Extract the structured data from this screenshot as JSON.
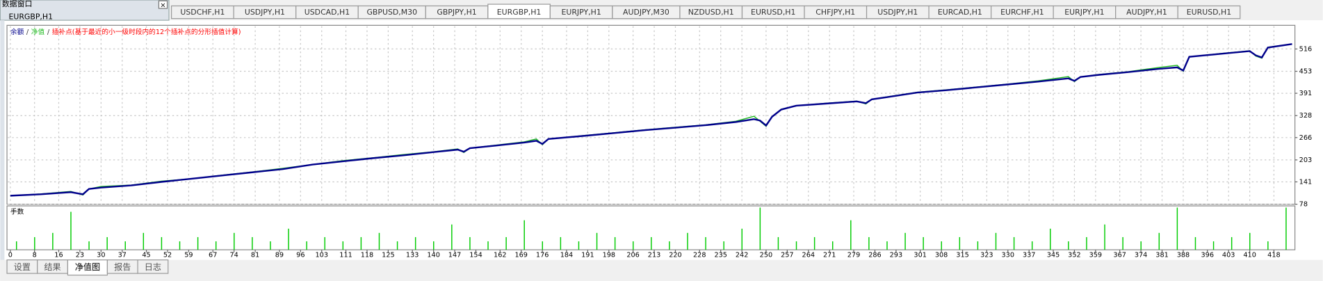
{
  "data_window": {
    "title": "数据窗口",
    "symbol": "EURGBP,H1"
  },
  "chart_tabs": {
    "items": [
      "USDCHF,H1",
      "USDJPY,H1",
      "USDCAD,H1",
      "GBPUSD,M30",
      "GBPJPY,H1",
      "EURGBP,H1",
      "EURJPY,H1",
      "AUDJPY,M30",
      "NZDUSD,H1",
      "EURUSD,H1",
      "CHFJPY,H1",
      "USDJPY,H1",
      "EURCAD,H1",
      "EURCHF,H1",
      "EURJPY,H1",
      "AUDJPY,H1",
      "EURUSD,H1"
    ],
    "active": 5
  },
  "bottom_tabs": {
    "items": [
      "设置",
      "结果",
      "净值图",
      "报告",
      "日志"
    ],
    "active": 2
  },
  "chart_data": {
    "type": "line",
    "legend_separator": "/",
    "interp_note": {
      "text": "插补点(基于最近的小一级时段内的12个插补点的分形插值计算)",
      "color": "#ff0000"
    },
    "x": [
      0,
      10,
      20,
      24,
      26,
      30,
      40,
      50,
      60,
      70,
      80,
      90,
      100,
      110,
      120,
      130,
      140,
      148,
      150,
      152,
      160,
      170,
      174,
      176,
      178,
      190,
      200,
      210,
      220,
      230,
      240,
      246,
      248,
      250,
      252,
      255,
      260,
      270,
      280,
      283,
      285,
      290,
      300,
      310,
      320,
      330,
      340,
      350,
      352,
      354,
      360,
      370,
      380,
      386,
      388,
      390,
      400,
      410,
      412,
      414,
      416,
      424
    ],
    "series": [
      {
        "name": "余额",
        "color": "#00008b",
        "values": [
          102,
          106,
          112,
          106,
          121,
          125,
          131,
          141,
          150,
          159,
          168,
          177,
          190,
          199,
          208,
          216,
          225,
          232,
          226,
          236,
          243,
          252,
          257,
          248,
          262,
          271,
          279,
          287,
          294,
          301,
          310,
          318,
          314,
          300,
          325,
          345,
          356,
          362,
          368,
          363,
          374,
          380,
          393,
          400,
          408,
          416,
          424,
          433,
          426,
          437,
          443,
          451,
          460,
          464,
          455,
          494,
          502,
          510,
          498,
          492,
          520,
          530
        ]
      },
      {
        "name": "净值",
        "color": "#22bb22",
        "values": [
          102,
          107,
          114,
          104,
          121,
          128,
          132,
          143,
          150,
          160,
          169,
          179,
          190,
          201,
          209,
          218,
          226,
          234,
          224,
          236,
          244,
          254,
          262,
          246,
          262,
          272,
          280,
          288,
          295,
          302,
          312,
          326,
          312,
          298,
          325,
          346,
          356,
          363,
          369,
          361,
          374,
          381,
          394,
          401,
          409,
          417,
          426,
          438,
          424,
          437,
          444,
          452,
          464,
          470,
          453,
          494,
          503,
          511,
          496,
          490,
          521,
          530
        ]
      }
    ],
    "xlim": [
      0,
      424
    ],
    "ylim": [
      78,
      578
    ],
    "xticks": [
      0,
      8,
      16,
      23,
      30,
      37,
      45,
      52,
      59,
      67,
      74,
      81,
      89,
      96,
      103,
      111,
      118,
      125,
      133,
      140,
      147,
      154,
      162,
      169,
      176,
      184,
      191,
      198,
      206,
      213,
      220,
      228,
      235,
      242,
      250,
      257,
      264,
      271,
      279,
      286,
      293,
      301,
      308,
      315,
      323,
      330,
      337,
      345,
      352,
      359,
      367,
      374,
      381,
      388,
      396,
      403,
      410,
      418
    ],
    "yticks": [
      516,
      453,
      391,
      328,
      266,
      203,
      141,
      78
    ],
    "grid": true,
    "lots": {
      "type": "bar",
      "name": "手数",
      "color": "#00cc00",
      "ylim": [
        0,
        0.1
      ],
      "x": [
        2,
        8,
        14,
        20,
        26,
        32,
        38,
        44,
        50,
        56,
        62,
        68,
        74,
        80,
        86,
        92,
        98,
        104,
        110,
        116,
        122,
        128,
        134,
        140,
        146,
        152,
        158,
        164,
        170,
        176,
        182,
        188,
        194,
        200,
        206,
        212,
        218,
        224,
        230,
        236,
        242,
        248,
        254,
        260,
        266,
        272,
        278,
        284,
        290,
        296,
        302,
        308,
        314,
        320,
        326,
        332,
        338,
        344,
        350,
        356,
        362,
        368,
        374,
        380,
        386,
        392,
        398,
        404,
        410,
        416,
        422
      ],
      "values": [
        0.02,
        0.03,
        0.04,
        0.09,
        0.02,
        0.03,
        0.02,
        0.04,
        0.03,
        0.02,
        0.03,
        0.02,
        0.04,
        0.03,
        0.02,
        0.05,
        0.02,
        0.03,
        0.02,
        0.03,
        0.04,
        0.02,
        0.03,
        0.02,
        0.06,
        0.03,
        0.02,
        0.03,
        0.07,
        0.02,
        0.03,
        0.02,
        0.04,
        0.03,
        0.02,
        0.03,
        0.02,
        0.04,
        0.03,
        0.02,
        0.05,
        0.1,
        0.03,
        0.02,
        0.03,
        0.02,
        0.07,
        0.03,
        0.02,
        0.04,
        0.03,
        0.02,
        0.03,
        0.02,
        0.04,
        0.03,
        0.02,
        0.05,
        0.02,
        0.03,
        0.06,
        0.03,
        0.02,
        0.04,
        0.1,
        0.03,
        0.02,
        0.03,
        0.04,
        0.02,
        0.1
      ]
    }
  }
}
